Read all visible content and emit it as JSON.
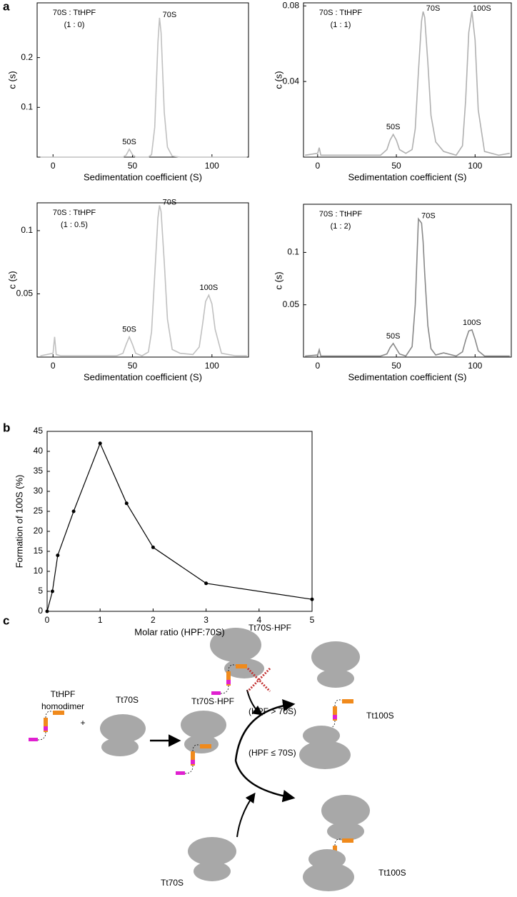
{
  "panel_labels": [
    "a",
    "b",
    "c"
  ],
  "chart_data": [
    {
      "type": "line",
      "x": [
        -8,
        0,
        1,
        2,
        5,
        20,
        40,
        44,
        46,
        48,
        50,
        52,
        56,
        60,
        62,
        64,
        66,
        67,
        68,
        70,
        72,
        75,
        80,
        88,
        92,
        94,
        96,
        98,
        100,
        102,
        106,
        115,
        122
      ],
      "series": [
        {
          "color": "#c0c0c0",
          "values": [
            0,
            0,
            0,
            0,
            0,
            0,
            0,
            0,
            0.004,
            0.016,
            0.005,
            0,
            0,
            0,
            0.005,
            0.06,
            0.23,
            0.28,
            0.25,
            0.09,
            0.02,
            0.002,
            0,
            0,
            0,
            0,
            0,
            0,
            0,
            0,
            0,
            0,
            0
          ]
        }
      ],
      "xlim": [
        -10,
        123
      ],
      "ylim": [
        0,
        0.31
      ],
      "xticks": [
        0,
        50,
        100
      ],
      "yticks": [
        0.1,
        0.2
      ],
      "xlabel": "Sedimentation coefficient (S)",
      "ylabel": "c (s)",
      "annotation": [
        "70S : TtHPF",
        "(1 : 0)"
      ],
      "peak_labels": [
        "50S",
        "70S"
      ]
    },
    {
      "type": "line",
      "x": [
        -8,
        0,
        1,
        2,
        5,
        20,
        40,
        44,
        46,
        48,
        50,
        52,
        56,
        60,
        62,
        64,
        66,
        67,
        68,
        70,
        72,
        75,
        80,
        88,
        92,
        94,
        96,
        98,
        100,
        102,
        106,
        115,
        122
      ],
      "series": [
        {
          "color": "#b0b0b0",
          "values": [
            0.001,
            0.002,
            0.005,
            0.001,
            0.001,
            0.001,
            0.001,
            0.004,
            0.009,
            0.012,
            0.009,
            0.004,
            0.002,
            0.004,
            0.015,
            0.045,
            0.072,
            0.077,
            0.074,
            0.05,
            0.022,
            0.008,
            0.003,
            0.001,
            0.006,
            0.03,
            0.066,
            0.077,
            0.062,
            0.025,
            0.003,
            0.001,
            0.002
          ]
        }
      ],
      "xlim": [
        -9,
        123
      ],
      "ylim": [
        0,
        0.0816
      ],
      "xticks": [
        0,
        50,
        100
      ],
      "yticks": [
        0.04,
        0.08
      ],
      "xlabel": "Sedimentation coefficient (S)",
      "ylabel": "c (s)",
      "annotation": [
        "70S : TtHPF",
        "(1 : 1)"
      ],
      "peak_labels": [
        "50S",
        "70S",
        "100S"
      ]
    },
    {
      "type": "line",
      "x": [
        -8,
        0,
        1,
        2,
        5,
        20,
        40,
        44,
        46,
        48,
        50,
        52,
        56,
        60,
        62,
        64,
        66,
        67,
        68,
        70,
        72,
        75,
        80,
        88,
        92,
        94,
        96,
        98,
        100,
        102,
        106,
        115,
        122
      ],
      "series": [
        {
          "color": "#c0c0c0",
          "values": [
            0.001,
            0.003,
            0.016,
            0.002,
            0.001,
            0.001,
            0.001,
            0.003,
            0.01,
            0.016,
            0.01,
            0.003,
            0.001,
            0.004,
            0.02,
            0.065,
            0.11,
            0.12,
            0.115,
            0.075,
            0.03,
            0.006,
            0.003,
            0.002,
            0.008,
            0.025,
            0.044,
            0.049,
            0.042,
            0.022,
            0.003,
            0.001,
            0.001
          ]
        }
      ],
      "xlim": [
        -10,
        123
      ],
      "ylim": [
        0,
        0.122
      ],
      "xticks": [
        0,
        50,
        100
      ],
      "yticks": [
        0.05,
        0.1
      ],
      "xlabel": "Sedimentation coefficient (S)",
      "ylabel": "c (s)",
      "annotation": [
        "70S : TtHPF",
        "(1 : 0.5)"
      ],
      "peak_labels": [
        "50S",
        "70S",
        "100S"
      ]
    },
    {
      "type": "line",
      "x": [
        -8,
        0,
        1,
        2,
        5,
        20,
        40,
        44,
        46,
        48,
        50,
        52,
        56,
        60,
        62,
        64,
        66,
        67,
        68,
        70,
        72,
        75,
        80,
        88,
        92,
        94,
        96,
        98,
        100,
        102,
        106,
        115,
        122
      ],
      "series": [
        {
          "color": "#888888",
          "values": [
            0.001,
            0.002,
            0.007,
            0.001,
            0.001,
            0.001,
            0.001,
            0.003,
            0.009,
            0.013,
            0.008,
            0.003,
            0.001,
            0.01,
            0.05,
            0.132,
            0.128,
            0.11,
            0.08,
            0.03,
            0.008,
            0.002,
            0.004,
            0.001,
            0.005,
            0.016,
            0.025,
            0.026,
            0.017,
            0.006,
            0.001,
            0.001,
            0.001
          ]
        }
      ],
      "xlim": [
        -9,
        123
      ],
      "ylim": [
        0,
        0.146
      ],
      "xticks": [
        0,
        50,
        100
      ],
      "yticks": [
        0.05,
        0.1
      ],
      "xlabel": "Sedimentation coefficient (S)",
      "ylabel": "c (s)",
      "annotation": [
        "70S : TtHPF",
        "(1 : 2)"
      ],
      "peak_labels": [
        "50S",
        "70S",
        "100S"
      ]
    },
    {
      "type": "line",
      "markers": true,
      "x": [
        0,
        0.1,
        0.2,
        0.5,
        1,
        1.5,
        2,
        3,
        5
      ],
      "series": [
        {
          "color": "#000000",
          "values": [
            0,
            5,
            14,
            25,
            42,
            27,
            16,
            7,
            3
          ]
        }
      ],
      "xlim": [
        0,
        5
      ],
      "ylim": [
        0,
        45
      ],
      "xticks": [
        0,
        1,
        2,
        3,
        4,
        5
      ],
      "yticks": [
        0,
        5,
        10,
        15,
        20,
        25,
        30,
        35,
        40,
        45
      ],
      "xlabel": "Molar ratio (HPF:70S)",
      "ylabel": "Formation of 100S (%)"
    }
  ],
  "diagram": {
    "texts": [
      "Tt70S·HPF",
      "TtHPF",
      "homodimer",
      "Tt70S",
      "+",
      "Tt70S·HPF",
      "(HPF > 70S)",
      "Tt100S",
      "(HPF ≤ 70S)",
      "Tt70S",
      "Tt100S"
    ]
  }
}
